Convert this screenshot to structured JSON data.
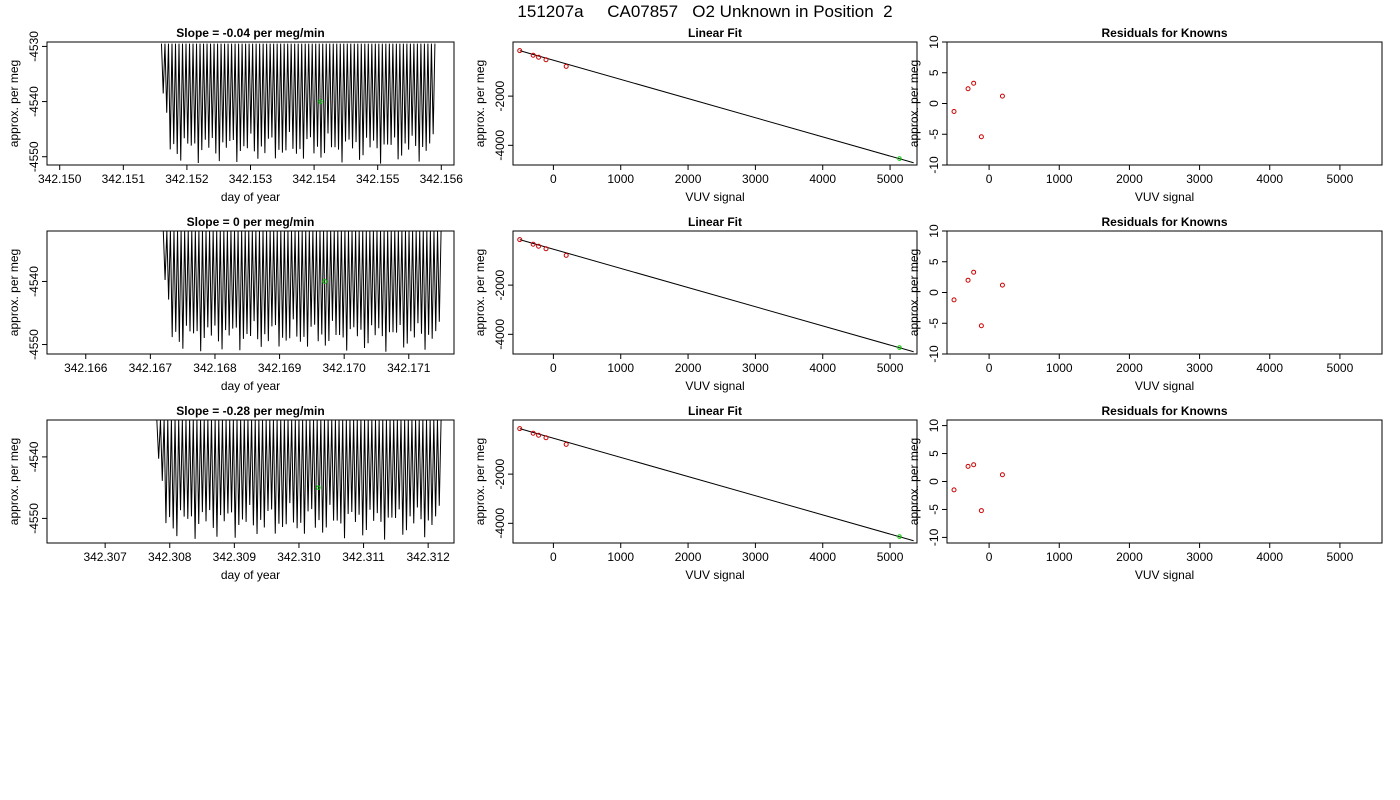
{
  "page": {
    "title": "151207a     CA07857   O2 Unknown in Position  2"
  },
  "colors": {
    "trace": "#000000",
    "unknown": "#00cc00",
    "known": "#cc0000",
    "fit_line": "#000000"
  },
  "chart_data": [
    {
      "panel": "trace-1",
      "type": "line",
      "title": "Slope =  -0.04  per meg/min",
      "xlabel": "day of year",
      "ylabel": "approx. per meg",
      "xlim": [
        342.1498,
        342.1562
      ],
      "ylim": [
        -4551.5,
        -4529.2
      ],
      "xticks": [
        342.15,
        342.151,
        342.152,
        342.153,
        342.154,
        342.155,
        342.156
      ],
      "xtick_labels": [
        "342.150",
        "342.151",
        "342.152",
        "342.153",
        "342.154",
        "342.155",
        "342.156"
      ],
      "yticks": [
        -4530,
        -4540,
        -4550
      ],
      "ytick_labels": [
        "-4530",
        "-4540",
        "-4550"
      ],
      "trace_x_range": [
        342.1516,
        342.1559
      ],
      "trace_cycles": 78,
      "trace_high": -4529.5,
      "trace_low_range": [
        -4551.3,
        -4545.5
      ],
      "unknown_point": {
        "x": 342.1541,
        "y": -4540
      }
    },
    {
      "panel": "fit-1",
      "type": "scatter",
      "title": "Linear Fit",
      "xlabel": "VUV signal",
      "ylabel": "approx. per meg",
      "xlim": [
        -600,
        5400
      ],
      "ylim": [
        -4800,
        200
      ],
      "xticks": [
        0,
        1000,
        2000,
        3000,
        4000,
        5000
      ],
      "xtick_labels": [
        "0",
        "1000",
        "2000",
        "3000",
        "4000",
        "5000"
      ],
      "yticks": [
        -2000,
        -4000
      ],
      "ytick_labels": [
        "-2000",
        "-4000"
      ],
      "known_points": [
        {
          "x": -500,
          "y": -150
        },
        {
          "x": -300,
          "y": -340
        },
        {
          "x": -220,
          "y": -420
        },
        {
          "x": -110,
          "y": -520
        },
        {
          "x": 190,
          "y": -790
        }
      ],
      "unknown_point": {
        "x": 5140,
        "y": -4540
      },
      "fit_line": {
        "x": [
          -500,
          5350
        ],
        "y": [
          -150,
          -4710
        ]
      }
    },
    {
      "panel": "resid-1",
      "type": "scatter",
      "title": "Residuals for Knowns",
      "xlabel": "VUV signal",
      "ylabel": "approx. per meg",
      "xlim": [
        -600,
        5600
      ],
      "ylim": [
        -10,
        10
      ],
      "xticks": [
        0,
        1000,
        2000,
        3000,
        4000,
        5000
      ],
      "xtick_labels": [
        "0",
        "1000",
        "2000",
        "3000",
        "4000",
        "5000"
      ],
      "yticks": [
        10,
        5,
        0,
        -5,
        -10
      ],
      "ytick_labels": [
        "10",
        "5",
        "0",
        "-5",
        "-10"
      ],
      "known_points": [
        {
          "x": -500,
          "y": -1.3
        },
        {
          "x": -300,
          "y": 2.4
        },
        {
          "x": -220,
          "y": 3.3
        },
        {
          "x": -110,
          "y": -5.4
        },
        {
          "x": 190,
          "y": 1.2
        }
      ]
    },
    {
      "panel": "trace-2",
      "type": "line",
      "title": "Slope =  0  per meg/min",
      "xlabel": "day of year",
      "ylabel": "approx. per meg",
      "xlim": [
        342.1654,
        342.1717
      ],
      "ylim": [
        -4551.5,
        -4532
      ],
      "xticks": [
        342.166,
        342.167,
        342.168,
        342.169,
        342.17,
        342.171
      ],
      "xtick_labels": [
        "342.166",
        "342.167",
        "342.168",
        "342.169",
        "342.170",
        "342.171"
      ],
      "yticks": [
        -4540,
        -4550
      ],
      "ytick_labels": [
        "-4540",
        "-4550"
      ],
      "trace_x_range": [
        342.1672,
        342.1715
      ],
      "trace_cycles": 78,
      "trace_high": -4532,
      "trace_low_range": [
        -4551.2,
        -4546
      ],
      "unknown_point": {
        "x": 342.1697,
        "y": -4540
      }
    },
    {
      "panel": "fit-2",
      "type": "scatter",
      "title": "Linear Fit",
      "xlabel": "VUV signal",
      "ylabel": "approx. per meg",
      "xlim": [
        -600,
        5400
      ],
      "ylim": [
        -4800,
        200
      ],
      "xticks": [
        0,
        1000,
        2000,
        3000,
        4000,
        5000
      ],
      "xtick_labels": [
        "0",
        "1000",
        "2000",
        "3000",
        "4000",
        "5000"
      ],
      "yticks": [
        -2000,
        -4000
      ],
      "ytick_labels": [
        "-2000",
        "-4000"
      ],
      "known_points": [
        {
          "x": -500,
          "y": -150
        },
        {
          "x": -300,
          "y": -340
        },
        {
          "x": -220,
          "y": -420
        },
        {
          "x": -110,
          "y": -520
        },
        {
          "x": 190,
          "y": -790
        }
      ],
      "unknown_point": {
        "x": 5140,
        "y": -4540
      },
      "fit_line": {
        "x": [
          -500,
          5350
        ],
        "y": [
          -150,
          -4710
        ]
      }
    },
    {
      "panel": "resid-2",
      "type": "scatter",
      "title": "Residuals for Knowns",
      "xlabel": "VUV signal",
      "ylabel": "approx. per meg",
      "xlim": [
        -600,
        5600
      ],
      "ylim": [
        -10,
        10
      ],
      "xticks": [
        0,
        1000,
        2000,
        3000,
        4000,
        5000
      ],
      "xtick_labels": [
        "0",
        "1000",
        "2000",
        "3000",
        "4000",
        "5000"
      ],
      "yticks": [
        10,
        5,
        0,
        -5,
        -10
      ],
      "ytick_labels": [
        "10",
        "5",
        "0",
        "-5",
        "-10"
      ],
      "known_points": [
        {
          "x": -500,
          "y": -1.2
        },
        {
          "x": -300,
          "y": 2.0
        },
        {
          "x": -220,
          "y": 3.3
        },
        {
          "x": -110,
          "y": -5.4
        },
        {
          "x": 190,
          "y": 1.2
        }
      ]
    },
    {
      "panel": "trace-3",
      "type": "line",
      "title": "Slope =  -0.28  per meg/min",
      "xlabel": "day of year",
      "ylabel": "approx. per meg",
      "xlim": [
        342.3061,
        342.3124
      ],
      "ylim": [
        -4554,
        -4534
      ],
      "xticks": [
        342.307,
        342.308,
        342.309,
        342.31,
        342.311,
        342.312
      ],
      "xtick_labels": [
        "342.307",
        "342.308",
        "342.309",
        "342.310",
        "342.311",
        "342.312"
      ],
      "yticks": [
        -4540,
        -4550
      ],
      "ytick_labels": [
        "-4540",
        "-4550"
      ],
      "trace_x_range": [
        342.3078,
        342.3122
      ],
      "trace_cycles": 78,
      "trace_high": -4534,
      "trace_low_range": [
        -4553.5,
        -4547.5
      ],
      "unknown_point": {
        "x": 342.3103,
        "y": -4545
      }
    },
    {
      "panel": "fit-3",
      "type": "scatter",
      "title": "Linear Fit",
      "xlabel": "VUV signal",
      "ylabel": "approx. per meg",
      "xlim": [
        -600,
        5400
      ],
      "ylim": [
        -4800,
        200
      ],
      "xticks": [
        0,
        1000,
        2000,
        3000,
        4000,
        5000
      ],
      "xtick_labels": [
        "0",
        "1000",
        "2000",
        "3000",
        "4000",
        "5000"
      ],
      "yticks": [
        -2000,
        -4000
      ],
      "ytick_labels": [
        "-2000",
        "-4000"
      ],
      "known_points": [
        {
          "x": -500,
          "y": -150
        },
        {
          "x": -300,
          "y": -340
        },
        {
          "x": -220,
          "y": -420
        },
        {
          "x": -110,
          "y": -520
        },
        {
          "x": 190,
          "y": -790
        }
      ],
      "unknown_point": {
        "x": 5140,
        "y": -4540
      },
      "fit_line": {
        "x": [
          -500,
          5350
        ],
        "y": [
          -150,
          -4710
        ]
      }
    },
    {
      "panel": "resid-3",
      "type": "scatter",
      "title": "Residuals for Knowns",
      "xlabel": "VUV signal",
      "ylabel": "approx. per meg",
      "xlim": [
        -600,
        5600
      ],
      "ylim": [
        -11,
        11
      ],
      "xticks": [
        0,
        1000,
        2000,
        3000,
        4000,
        5000
      ],
      "xtick_labels": [
        "0",
        "1000",
        "2000",
        "3000",
        "4000",
        "5000"
      ],
      "yticks": [
        10,
        5,
        0,
        -5,
        -10
      ],
      "ytick_labels": [
        "10",
        "5",
        "0",
        "-5",
        "-10"
      ],
      "known_points": [
        {
          "x": -500,
          "y": -1.5
        },
        {
          "x": -300,
          "y": 2.7
        },
        {
          "x": -220,
          "y": 3.0
        },
        {
          "x": -110,
          "y": -5.2
        },
        {
          "x": 190,
          "y": 1.2
        }
      ]
    }
  ]
}
